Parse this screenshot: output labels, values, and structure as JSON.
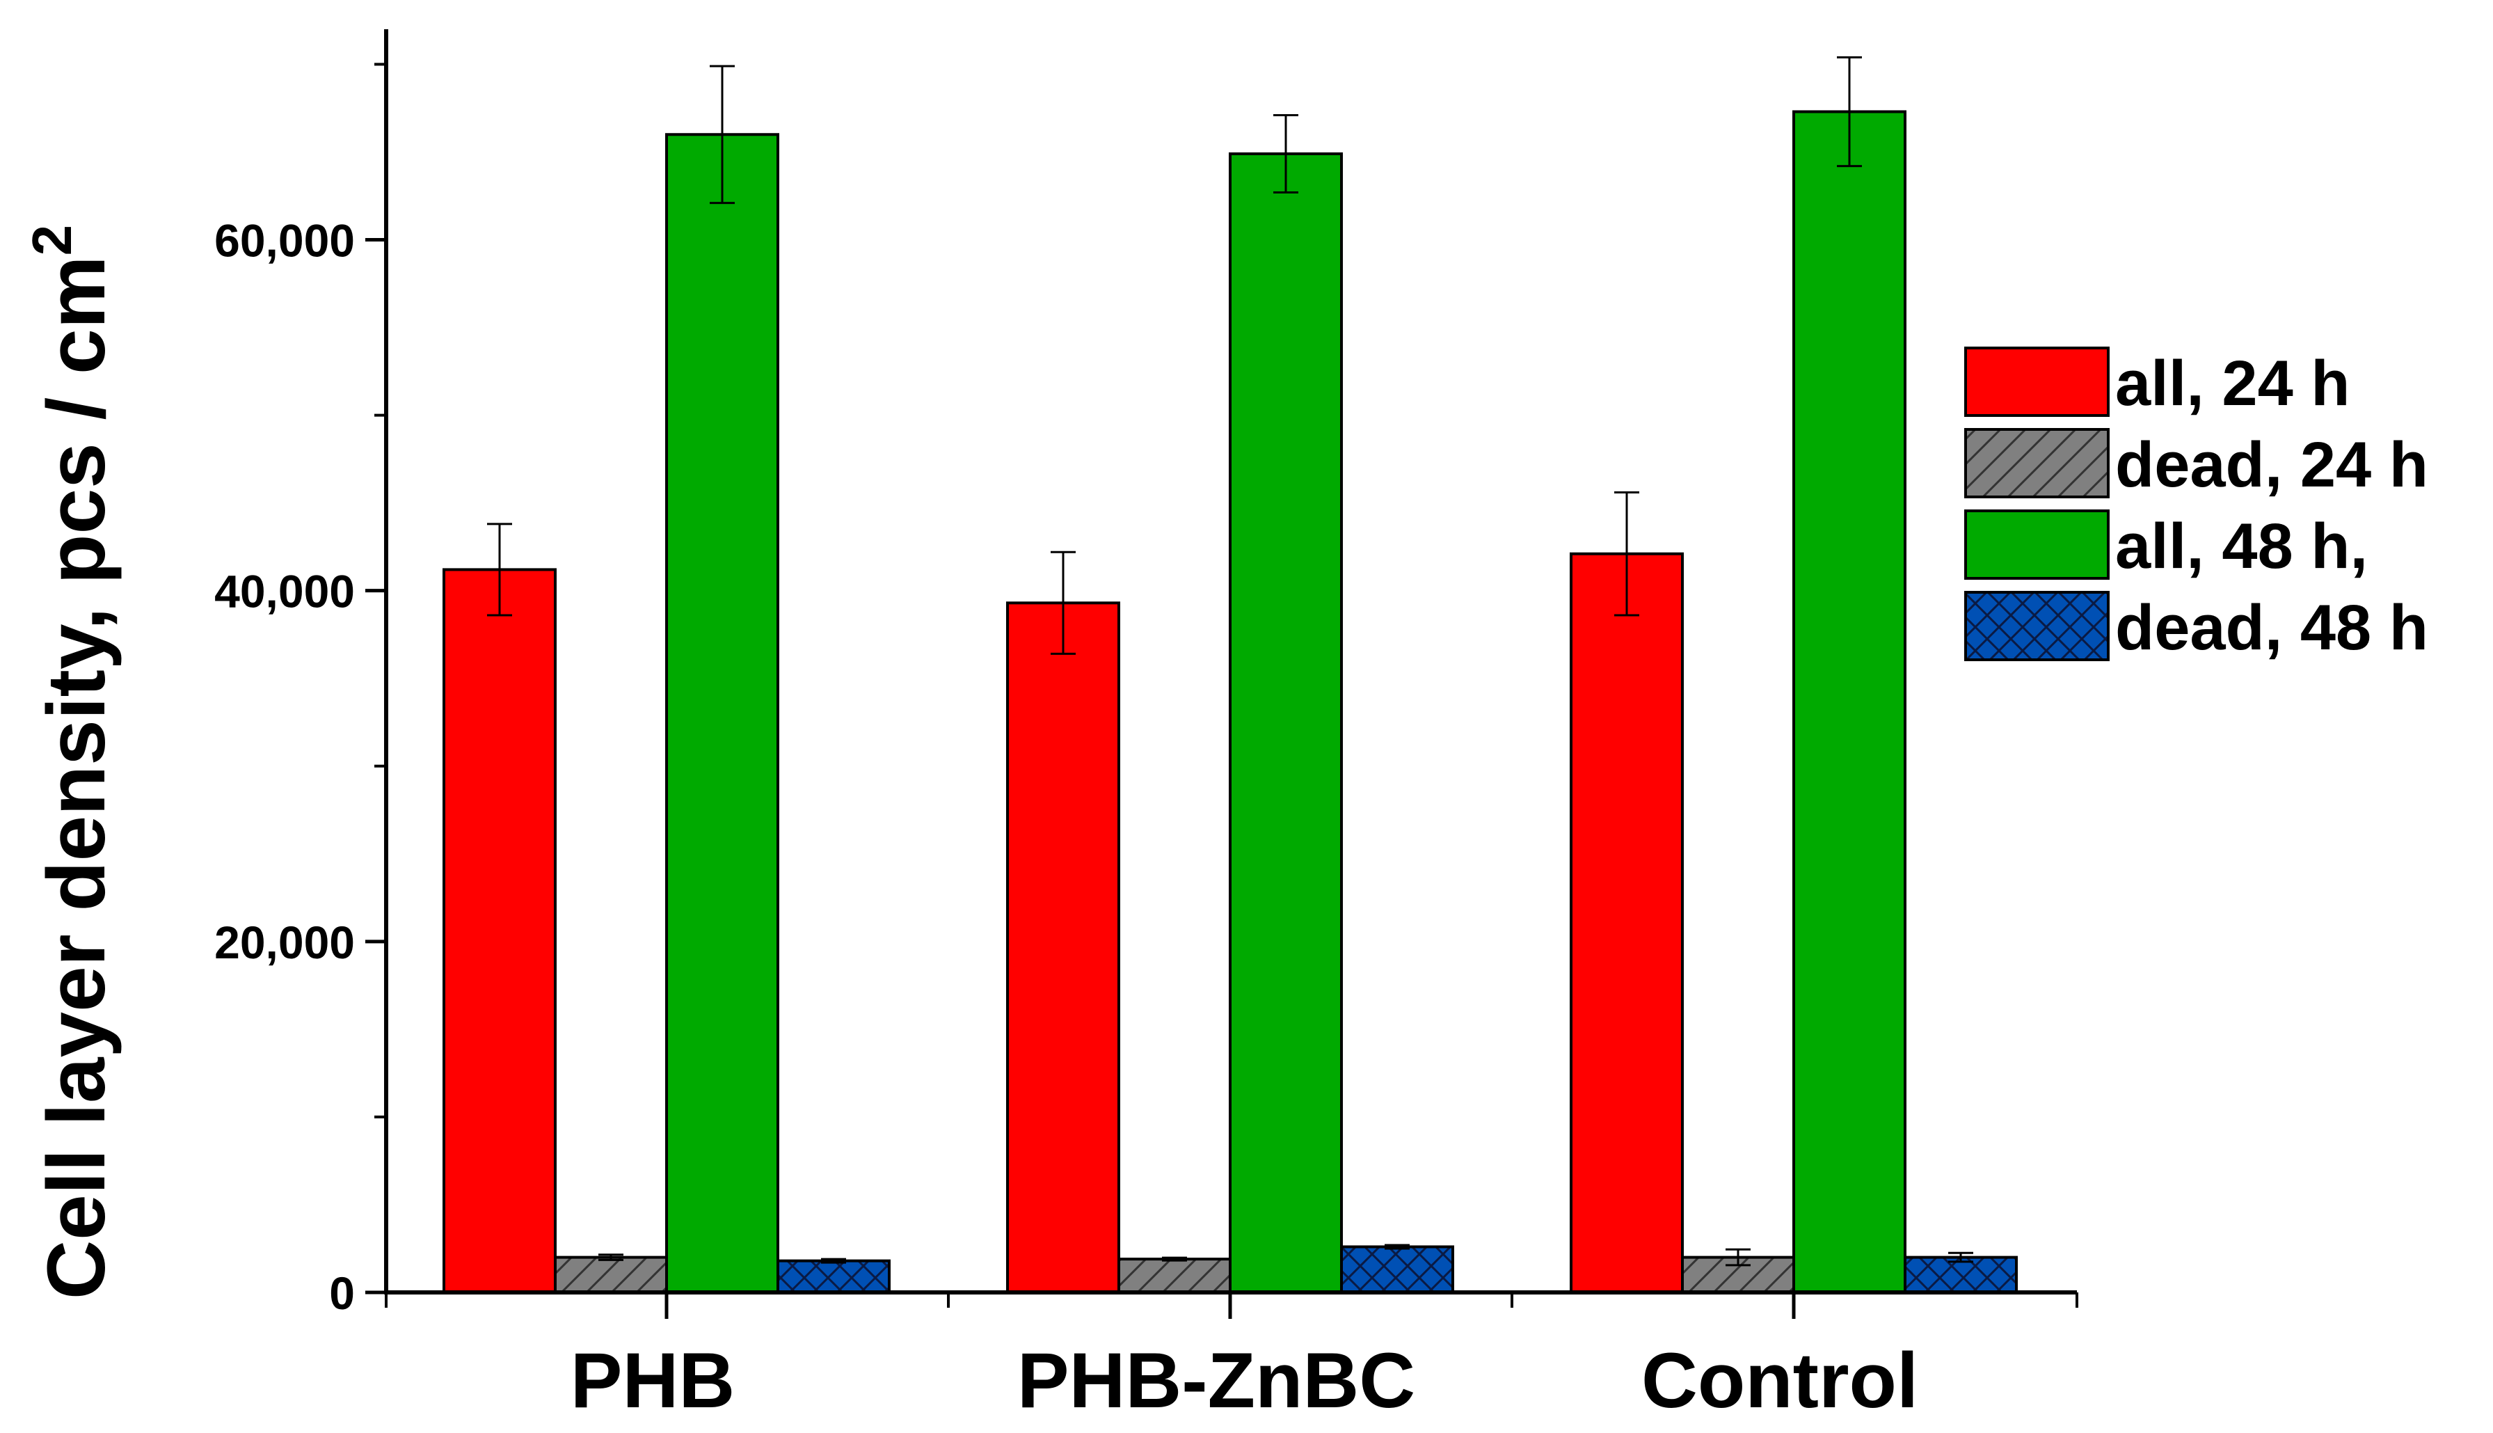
{
  "chart_data": {
    "type": "bar",
    "title": "",
    "xlabel": "",
    "ylabel": "Cell layer density, pcs / cm",
    "ylabel_superscript": "2",
    "categories": [
      "PHB",
      "PHB-ZnBC",
      "Control"
    ],
    "ylim": [
      0,
      72000
    ],
    "yticks": [
      0,
      20000,
      40000,
      60000
    ],
    "ytick_labels": [
      "0",
      "20,000",
      "40,000",
      "60,000"
    ],
    "grid": false,
    "legend_position": "right",
    "series": [
      {
        "name": "all, 24 h",
        "color": "#ff0000",
        "pattern": "solid",
        "values": [
          41200,
          39300,
          42100
        ],
        "errors": [
          2600,
          2900,
          3500
        ]
      },
      {
        "name": "dead, 24 h",
        "color": "#808080",
        "pattern": "diagonal",
        "values": [
          2000,
          1900,
          2000
        ],
        "errors": [
          150,
          80,
          450
        ]
      },
      {
        "name": "all, 48 h,",
        "color": "#00aa00",
        "pattern": "solid",
        "values": [
          66000,
          64900,
          67300
        ],
        "errors": [
          3900,
          2200,
          3100
        ]
      },
      {
        "name": "dead, 48 h",
        "color": "#0050b4",
        "pattern": "crosshatch",
        "values": [
          1800,
          2600,
          2000
        ],
        "errors": [
          100,
          100,
          250
        ]
      }
    ]
  }
}
